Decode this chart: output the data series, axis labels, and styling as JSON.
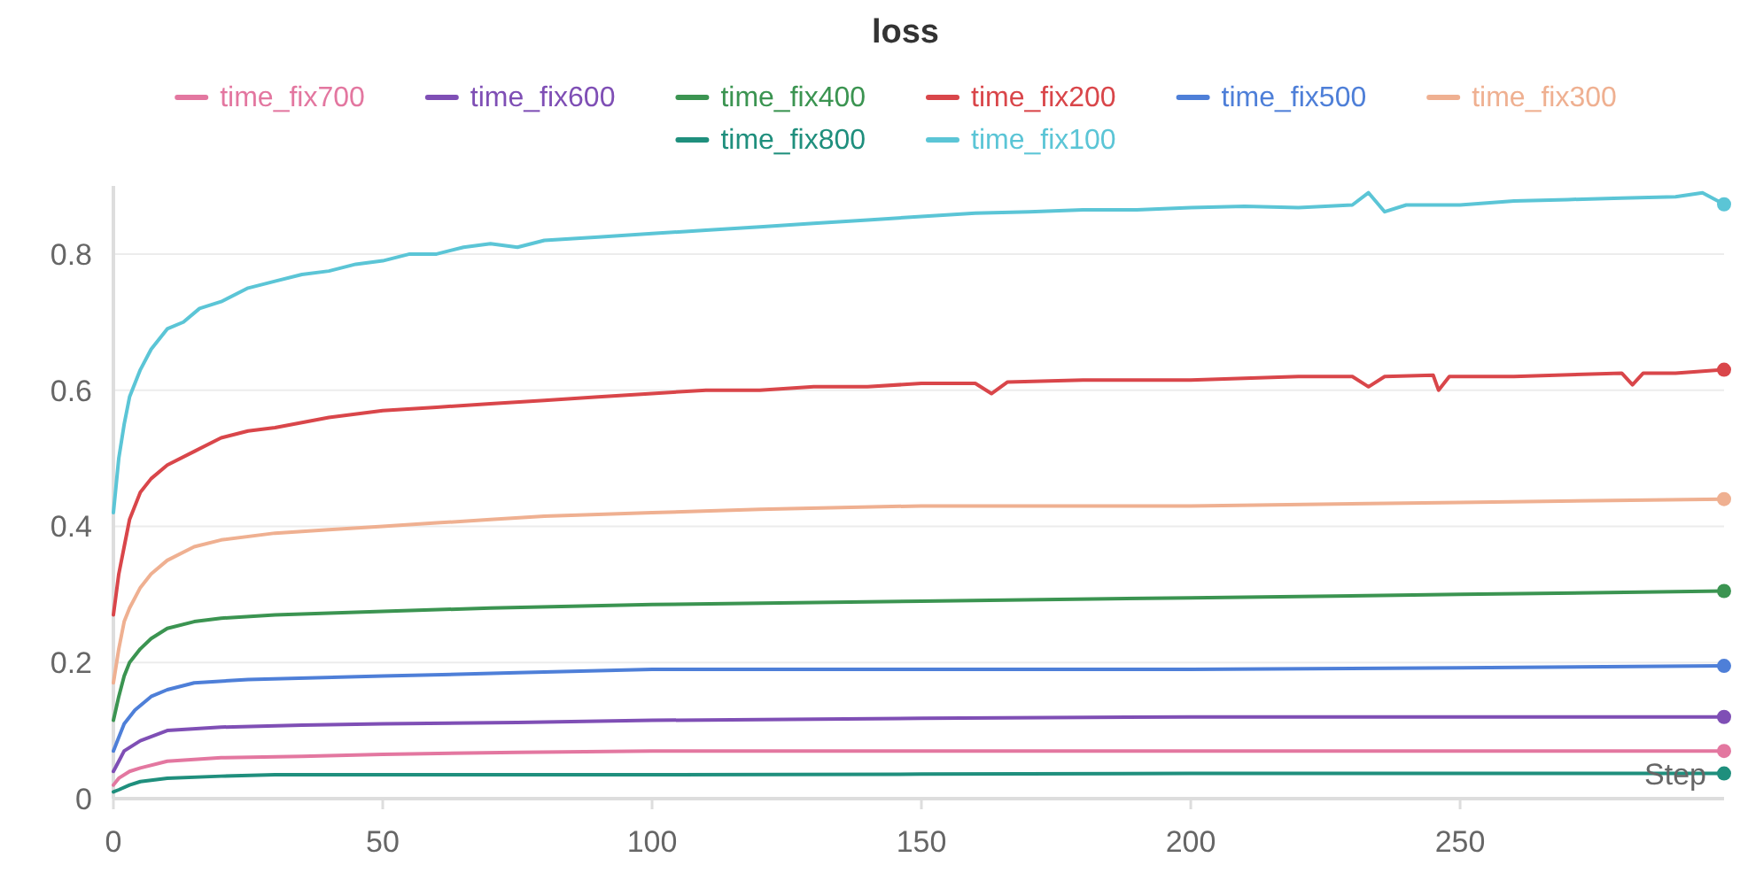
{
  "chart_data": {
    "type": "line",
    "title": "loss",
    "xlabel": "Step",
    "xlim": [
      0,
      299
    ],
    "ylim": [
      0,
      0.9
    ],
    "xticks": [
      0,
      50,
      100,
      150,
      200,
      250
    ],
    "yticks": [
      0,
      0.2,
      0.4,
      0.6,
      0.8
    ],
    "grid": "y",
    "legend": "top",
    "line_style": "solid",
    "series": [
      {
        "name": "time_fix700",
        "color": "#e377a0",
        "x": [
          0,
          1,
          3,
          5,
          10,
          20,
          35,
          50,
          75,
          100,
          150,
          200,
          250,
          299
        ],
        "values": [
          0.02,
          0.03,
          0.04,
          0.045,
          0.055,
          0.06,
          0.062,
          0.065,
          0.068,
          0.07,
          0.07,
          0.07,
          0.07,
          0.07
        ]
      },
      {
        "name": "time_fix600",
        "color": "#7f4fb5",
        "x": [
          0,
          1,
          2,
          5,
          10,
          20,
          35,
          50,
          75,
          100,
          150,
          200,
          250,
          299
        ],
        "values": [
          0.04,
          0.055,
          0.07,
          0.085,
          0.1,
          0.105,
          0.108,
          0.11,
          0.112,
          0.115,
          0.118,
          0.12,
          0.12,
          0.12
        ]
      },
      {
        "name": "time_fix400",
        "color": "#3b9451",
        "x": [
          0,
          1,
          2,
          3,
          5,
          7,
          10,
          15,
          20,
          30,
          50,
          70,
          100,
          150,
          200,
          250,
          299
        ],
        "values": [
          0.115,
          0.15,
          0.18,
          0.2,
          0.22,
          0.235,
          0.25,
          0.26,
          0.265,
          0.27,
          0.275,
          0.28,
          0.285,
          0.29,
          0.295,
          0.3,
          0.305
        ]
      },
      {
        "name": "time_fix200",
        "color": "#d9464a",
        "x": [
          0,
          1,
          2,
          3,
          5,
          7,
          10,
          15,
          20,
          25,
          30,
          40,
          50,
          60,
          70,
          80,
          90,
          100,
          110,
          120,
          130,
          140,
          150,
          160,
          163,
          166,
          180,
          200,
          220,
          230,
          233,
          236,
          245,
          246,
          248,
          260,
          280,
          282,
          284,
          290,
          299
        ],
        "values": [
          0.27,
          0.33,
          0.37,
          0.41,
          0.45,
          0.47,
          0.49,
          0.51,
          0.53,
          0.54,
          0.545,
          0.56,
          0.57,
          0.575,
          0.58,
          0.585,
          0.59,
          0.595,
          0.6,
          0.6,
          0.605,
          0.605,
          0.61,
          0.61,
          0.595,
          0.612,
          0.615,
          0.615,
          0.62,
          0.62,
          0.605,
          0.62,
          0.622,
          0.6,
          0.62,
          0.62,
          0.625,
          0.608,
          0.625,
          0.625,
          0.63
        ]
      },
      {
        "name": "time_fix500",
        "color": "#4e7fd8",
        "x": [
          0,
          1,
          2,
          4,
          7,
          10,
          15,
          25,
          50,
          75,
          100,
          150,
          200,
          250,
          299
        ],
        "values": [
          0.07,
          0.09,
          0.11,
          0.13,
          0.15,
          0.16,
          0.17,
          0.175,
          0.18,
          0.185,
          0.19,
          0.19,
          0.19,
          0.192,
          0.195
        ]
      },
      {
        "name": "time_fix300",
        "color": "#efb091",
        "x": [
          0,
          1,
          2,
          3,
          5,
          7,
          10,
          15,
          20,
          30,
          40,
          50,
          60,
          70,
          80,
          100,
          120,
          150,
          200,
          250,
          299
        ],
        "values": [
          0.17,
          0.22,
          0.26,
          0.28,
          0.31,
          0.33,
          0.35,
          0.37,
          0.38,
          0.39,
          0.395,
          0.4,
          0.405,
          0.41,
          0.415,
          0.42,
          0.425,
          0.43,
          0.43,
          0.435,
          0.44
        ]
      },
      {
        "name": "time_fix800",
        "color": "#1f8f7d",
        "x": [
          0,
          1,
          3,
          5,
          10,
          20,
          30,
          50,
          100,
          150,
          200,
          250,
          299
        ],
        "values": [
          0.01,
          0.013,
          0.02,
          0.025,
          0.03,
          0.033,
          0.035,
          0.035,
          0.035,
          0.036,
          0.037,
          0.037,
          0.037
        ]
      },
      {
        "name": "time_fix100",
        "color": "#5bc5d6",
        "x": [
          0,
          1,
          2,
          3,
          5,
          7,
          10,
          13,
          16,
          20,
          25,
          30,
          35,
          40,
          45,
          50,
          55,
          60,
          65,
          70,
          75,
          80,
          90,
          100,
          110,
          120,
          130,
          140,
          150,
          160,
          170,
          180,
          190,
          200,
          210,
          220,
          230,
          233,
          236,
          240,
          250,
          260,
          270,
          280,
          290,
          295,
          299
        ],
        "values": [
          0.42,
          0.5,
          0.55,
          0.59,
          0.63,
          0.66,
          0.69,
          0.7,
          0.72,
          0.73,
          0.75,
          0.76,
          0.77,
          0.775,
          0.785,
          0.79,
          0.8,
          0.8,
          0.81,
          0.815,
          0.81,
          0.82,
          0.825,
          0.83,
          0.835,
          0.84,
          0.845,
          0.85,
          0.855,
          0.86,
          0.862,
          0.865,
          0.865,
          0.868,
          0.87,
          0.868,
          0.872,
          0.89,
          0.862,
          0.872,
          0.872,
          0.878,
          0.88,
          0.882,
          0.884,
          0.89,
          0.873
        ]
      }
    ]
  }
}
